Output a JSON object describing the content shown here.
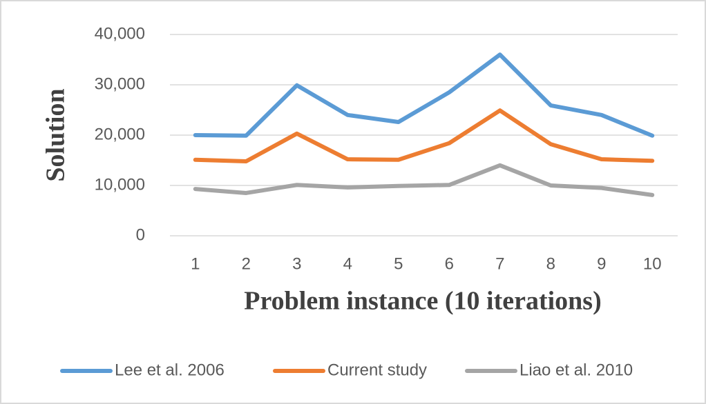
{
  "chart_data": {
    "type": "line",
    "x_label": "Problem instance (10 iterations)",
    "y_label": "Solution",
    "categories": [
      "1",
      "2",
      "3",
      "4",
      "5",
      "6",
      "7",
      "8",
      "9",
      "10"
    ],
    "series": [
      {
        "name": "Lee et al. 2006",
        "color": "#5b9bd5",
        "values": [
          20000,
          19900,
          29900,
          24000,
          22600,
          28500,
          36000,
          25900,
          24000,
          19900
        ]
      },
      {
        "name": "Current study",
        "color": "#ed7d31",
        "values": [
          15100,
          14800,
          20300,
          15200,
          15100,
          18400,
          24900,
          18200,
          15200,
          14900
        ]
      },
      {
        "name": "Liao et al. 2010",
        "color": "#a5a5a5",
        "values": [
          9300,
          8500,
          10100,
          9600,
          9900,
          10100,
          14000,
          10000,
          9500,
          8100
        ]
      }
    ],
    "ylim": [
      0,
      40000
    ],
    "yticks": [
      0,
      {
        "value": 10000,
        "label": "10,000"
      },
      {
        "value": 20000,
        "label": "20,000"
      },
      {
        "value": 30000,
        "label": "30,000"
      },
      {
        "value": 40000,
        "label": "40,000"
      }
    ],
    "grid": true,
    "legend": "bottom"
  }
}
